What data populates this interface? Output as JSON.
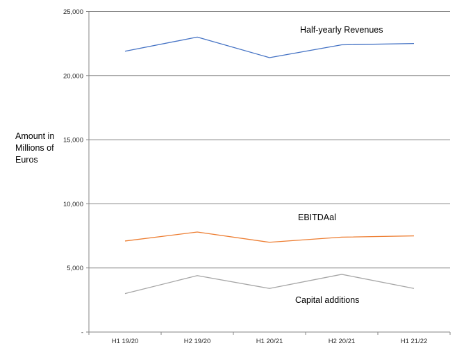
{
  "chart_data": {
    "type": "line",
    "categories": [
      "H1 19/20",
      "H2 19/20",
      "H1 20/21",
      "H2 20/21",
      "H1 21/22"
    ],
    "series": [
      {
        "name": "Half-yearly Revenues",
        "color": "#4472C4",
        "values": [
          21900,
          23000,
          21400,
          22400,
          22500
        ]
      },
      {
        "name": "EBITDAal",
        "color": "#ED7D31",
        "values": [
          7100,
          7800,
          7000,
          7400,
          7500
        ]
      },
      {
        "name": "Capital additions",
        "color": "#A6A6A6",
        "values": [
          3000,
          4400,
          3400,
          4500,
          3400
        ]
      }
    ],
    "title": "",
    "xlabel": "",
    "ylabel": "Amount in Millions of Euros",
    "ylabel_lines": [
      "Amount in",
      "Millions of",
      "Euros"
    ],
    "ylim": [
      0,
      25000
    ],
    "yticks": {
      "values": [
        25000,
        20000,
        15000,
        10000,
        5000,
        0
      ],
      "labels": [
        "25,000",
        "20,000",
        "15,000",
        "10,000",
        "5,000",
        "-"
      ]
    },
    "grid": true,
    "legend": "inline series labels next to lines",
    "colors": {
      "gridline": "#858585",
      "axis": "#858585",
      "text": "#000000",
      "tick_text": "#262626",
      "background": "#FFFFFF"
    }
  }
}
